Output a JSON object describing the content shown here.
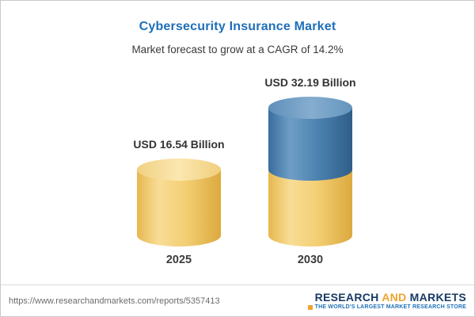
{
  "header": {
    "title": "Cybersecurity Insurance Market",
    "subtitle": "Market forecast to grow at a CAGR of 14.2%"
  },
  "chart_data": {
    "type": "bar",
    "variant": "cylinder",
    "categories": [
      "2025",
      "2030"
    ],
    "values": [
      16.54,
      32.19
    ],
    "value_labels": [
      "USD 16.54 Billion",
      "USD 32.19 Billion"
    ],
    "unit": "USD Billion",
    "title": "Cybersecurity Insurance Market",
    "subtitle": "Market forecast to grow at a CAGR of 14.2%",
    "cagr_percent": 14.2,
    "xlabel": "",
    "ylabel": "",
    "ylim": [
      0,
      35
    ],
    "grid": false,
    "legend": false,
    "colors": {
      "bar_base_yellow": "#F2CD71",
      "bar_growth_blue": "#4379AC",
      "title_blue": "#1E6FB8",
      "label_text": "#333333"
    },
    "notes": "2030 bar is stacked: yellow base equals 2025 value, blue top segment is growth above 2025 level"
  },
  "footer": {
    "url": "https://www.researchandmarkets.com/reports/5357413",
    "logo": {
      "name_part1": "RESEARCH",
      "name_part2": "AND",
      "name_part3": "MARKETS",
      "tagline": "THE WORLD'S LARGEST MARKET RESEARCH STORE",
      "navy": "#173A64",
      "gold": "#F0A22E"
    }
  }
}
